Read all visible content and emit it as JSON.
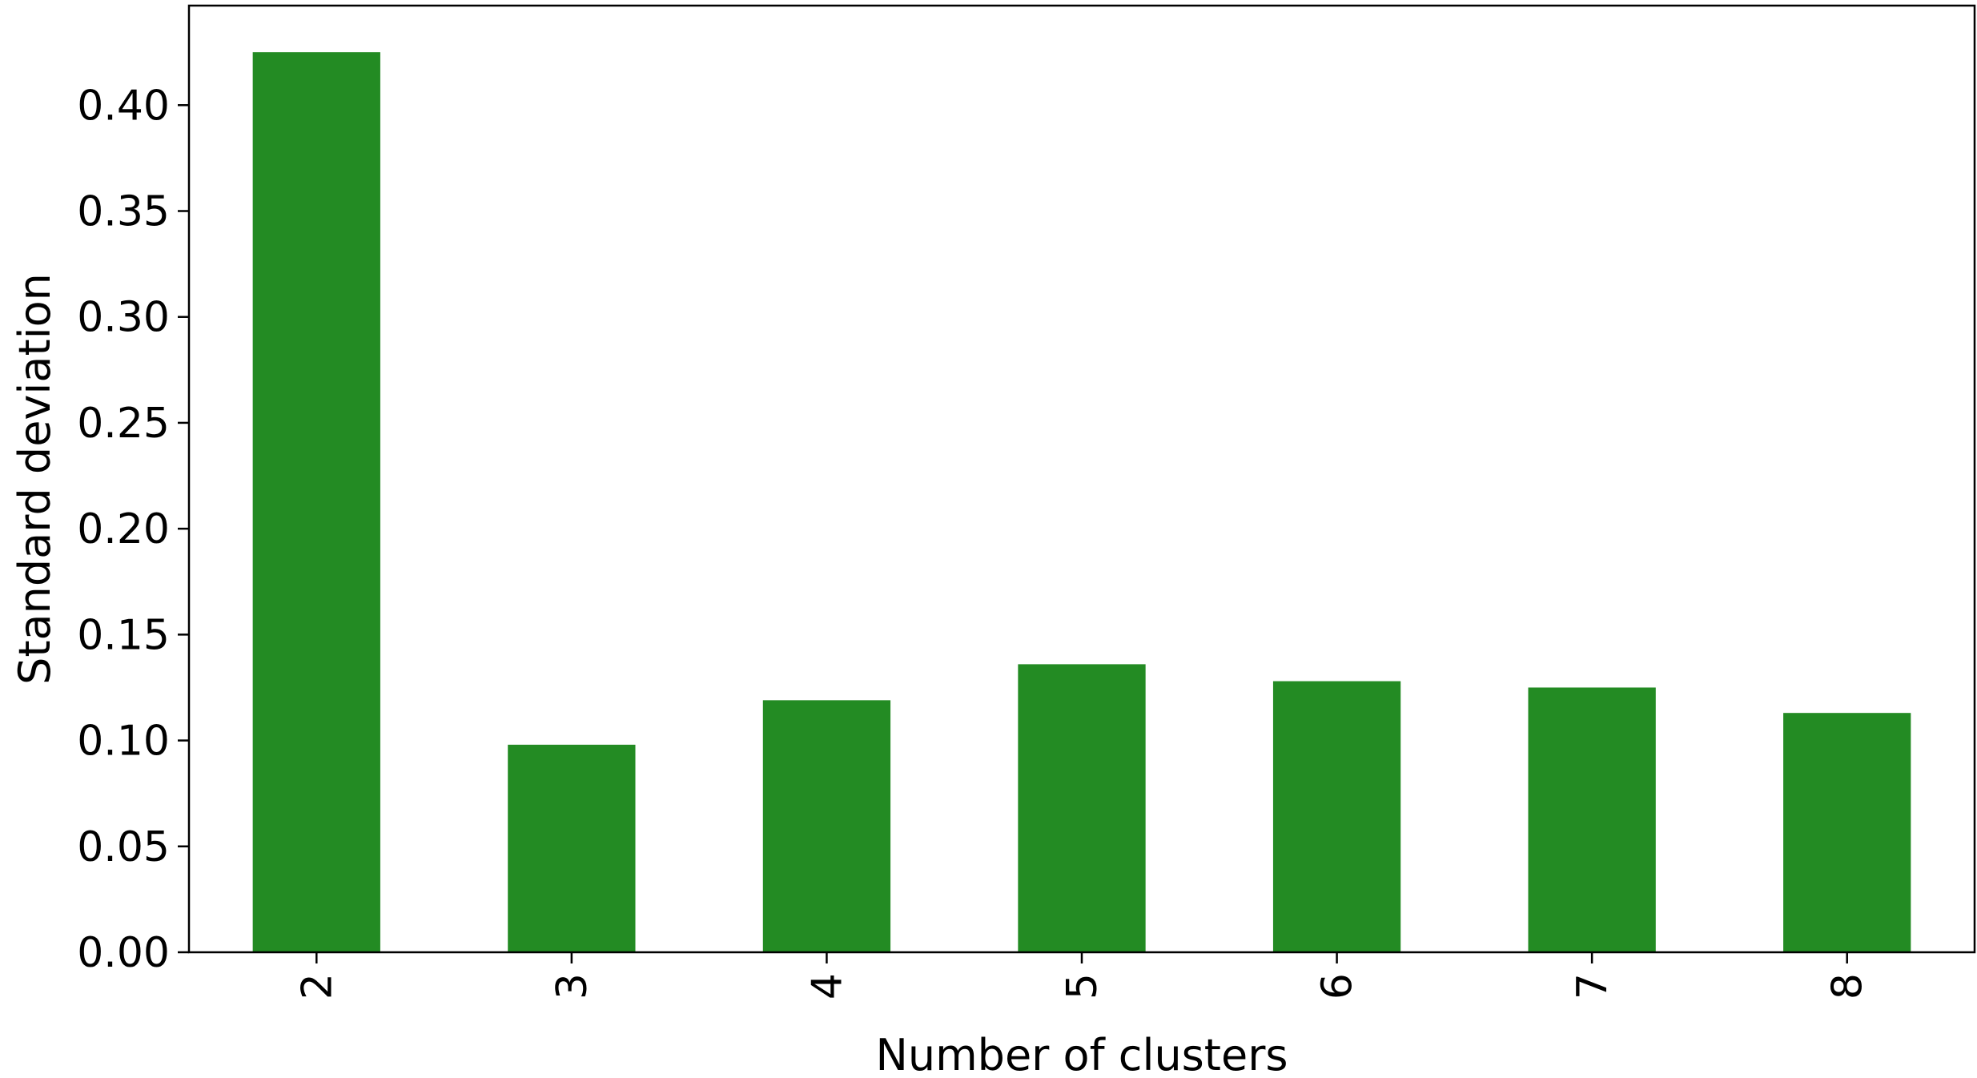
{
  "chart_data": {
    "type": "bar",
    "title": "",
    "xlabel": "Number of clusters",
    "ylabel": "Standard deviation",
    "categories": [
      "2",
      "3",
      "4",
      "5",
      "6",
      "7",
      "8"
    ],
    "values": [
      0.425,
      0.098,
      0.119,
      0.136,
      0.128,
      0.125,
      0.113
    ],
    "ylim": [
      0,
      0.447
    ],
    "yticks": [
      "0.00",
      "0.05",
      "0.10",
      "0.15",
      "0.20",
      "0.25",
      "0.30",
      "0.35",
      "0.40"
    ],
    "bar_color": "#238b23",
    "grid": false,
    "legend": "none",
    "xtick_rotation": "vertical"
  }
}
